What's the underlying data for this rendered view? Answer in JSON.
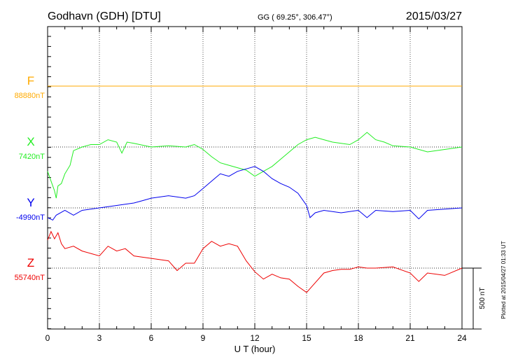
{
  "header": {
    "station": "Godhavn (GDH)  [DTU]",
    "coords": "GG ( 69.25°, 306.47°)",
    "date": "2015/03/27"
  },
  "plotted_note": "Plotted at 2015/04/27 01:33 UT",
  "scale_label": "500 nT",
  "chart_data": {
    "type": "line",
    "xlabel": "U T (hour)",
    "xlim": [
      0,
      24
    ],
    "x_ticks": [
      "0",
      "3",
      "6",
      "9",
      "12",
      "15",
      "18",
      "21",
      "24"
    ],
    "series": [
      {
        "name": "F",
        "baseline_label": "88880nT",
        "color": "#ffaa00",
        "x": [
          0,
          24
        ],
        "values": [
          0,
          0
        ]
      },
      {
        "name": "X",
        "baseline_label": "7420nT",
        "color": "#22ee22",
        "x": [
          0,
          0.2,
          0.4,
          0.5,
          0.6,
          0.8,
          1,
          1.3,
          1.5,
          2,
          2.5,
          3,
          3.5,
          4,
          4.3,
          4.6,
          5,
          6,
          7,
          8,
          8.5,
          9,
          9.5,
          10,
          10.5,
          11,
          11.5,
          12,
          12.5,
          13,
          13.5,
          14,
          14.5,
          15,
          15.5,
          16,
          16.5,
          17,
          17.5,
          18,
          18.5,
          19,
          19.5,
          20,
          21,
          22,
          23,
          24
        ],
        "values": [
          -200,
          -280,
          -360,
          -420,
          -320,
          -300,
          -220,
          -150,
          -30,
          0,
          20,
          20,
          60,
          40,
          -50,
          40,
          30,
          0,
          10,
          0,
          20,
          -20,
          -80,
          -130,
          -150,
          -170,
          -190,
          -240,
          -200,
          -160,
          -100,
          -40,
          20,
          60,
          80,
          60,
          40,
          30,
          20,
          60,
          120,
          60,
          40,
          10,
          0,
          -40,
          -20,
          0
        ]
      },
      {
        "name": "Y",
        "baseline_label": "-4990nT",
        "color": "#0000ee",
        "x": [
          0,
          0.3,
          0.5,
          1,
          1.5,
          2,
          3,
          4,
          5,
          5.5,
          6,
          7,
          8,
          8.5,
          9,
          9.5,
          10,
          10.5,
          11,
          11.5,
          12,
          12.5,
          13,
          13.5,
          14,
          14.5,
          15,
          15.2,
          15.5,
          16,
          17,
          18,
          18.5,
          19,
          20,
          21,
          21.5,
          22,
          23,
          24
        ],
        "values": [
          -80,
          -100,
          -60,
          -20,
          -60,
          -20,
          0,
          20,
          40,
          60,
          80,
          100,
          80,
          100,
          160,
          220,
          280,
          260,
          300,
          320,
          340,
          300,
          240,
          200,
          170,
          120,
          20,
          -80,
          -40,
          -20,
          -40,
          -20,
          -80,
          -20,
          -30,
          -20,
          -90,
          -20,
          -10,
          0
        ]
      },
      {
        "name": "Z",
        "baseline_label": "55740nT",
        "color": "#ee0000",
        "x": [
          0,
          0.2,
          0.4,
          0.6,
          0.8,
          1,
          1.5,
          2,
          2.5,
          3,
          3.5,
          4,
          4.5,
          5,
          6,
          7,
          7.5,
          8,
          8.5,
          9,
          9.5,
          10,
          10.5,
          11,
          11.5,
          12,
          12.5,
          13,
          13.5,
          14,
          14.5,
          15,
          15.5,
          16,
          16.5,
          17,
          17.5,
          18,
          18.5,
          19,
          20,
          21,
          21.5,
          22,
          23,
          24
        ],
        "values": [
          230,
          300,
          240,
          290,
          200,
          160,
          180,
          140,
          120,
          100,
          180,
          140,
          160,
          100,
          80,
          60,
          -20,
          40,
          40,
          160,
          220,
          180,
          200,
          180,
          60,
          -30,
          -90,
          -50,
          -80,
          -90,
          -150,
          -200,
          -120,
          -40,
          -20,
          -10,
          -10,
          10,
          0,
          0,
          10,
          -40,
          -110,
          -40,
          -60,
          0
        ]
      }
    ]
  }
}
